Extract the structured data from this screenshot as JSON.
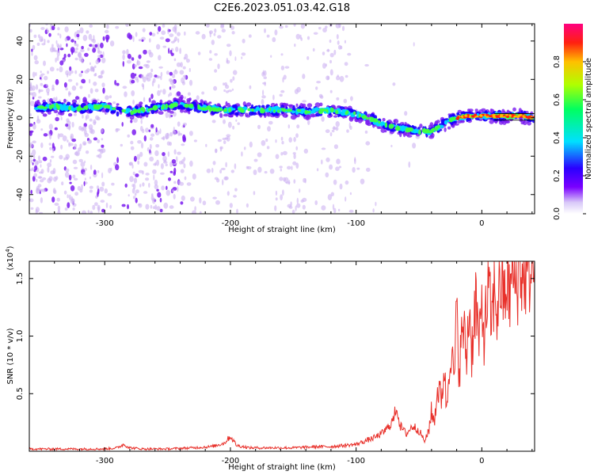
{
  "title": "C2E6.2023.051.03.42.G18",
  "colors": {
    "snr_line": "#e8302a",
    "spectro_low": "#cdb3f2",
    "spectro_mid": "#7b1cf0",
    "ridge_outline": "#1a00ff"
  },
  "chart_data": [
    {
      "type": "heatmap",
      "xlabel": "Height of straight line (km)",
      "ylabel": "Frequency (Hz)",
      "xlim": [
        -360,
        42
      ],
      "ylim": [
        -50,
        49
      ],
      "x_ticks": [
        -300,
        -200,
        -100,
        0
      ],
      "x_tick_labels": [
        "-300",
        "-200",
        "-100",
        "0"
      ],
      "y_ticks": [
        -40,
        -20,
        0,
        20,
        40
      ],
      "y_tick_labels": [
        "-40",
        "-20",
        "0",
        "20",
        "40"
      ],
      "ridge": {
        "x": [
          -355,
          -340,
          -320,
          -300,
          -290,
          -280,
          -260,
          -240,
          -220,
          -200,
          -180,
          -160,
          -140,
          -120,
          -100,
          -90,
          -80,
          -70,
          -60,
          -50,
          -40,
          -30,
          -20,
          -10,
          0,
          10,
          20,
          30,
          42
        ],
        "y": [
          5,
          6,
          5,
          6,
          4,
          3,
          5,
          7,
          5,
          4,
          4,
          4,
          3,
          4,
          2,
          0,
          -3,
          -5,
          -6,
          -7,
          -7,
          -3,
          0,
          1,
          1,
          1,
          1,
          1,
          0
        ]
      },
      "colorbar": {
        "label": "Normalized spectral amplitude",
        "range": [
          0,
          1
        ],
        "ticks": [
          0.0,
          0.2,
          0.4,
          0.6,
          0.8
        ],
        "tick_labels": [
          "0.0",
          "0.2",
          "0.4",
          "0.6",
          "0.8"
        ],
        "colormap": [
          "#ffffff",
          "#d8c8f8",
          "#7a00ff",
          "#2a00ff",
          "#00e0ff",
          "#00ff60",
          "#b0ff00",
          "#ffc000",
          "#ff2010",
          "#ff0080"
        ]
      }
    },
    {
      "type": "line",
      "xlabel": "Height of straight line (km)",
      "ylabel": "SNR (10 * v/v)",
      "multiplier_label": "(x10",
      "multiplier_exponent": "4",
      "multiplier_close": ")",
      "xlim": [
        -360,
        42
      ],
      "ylim": [
        0,
        1.65
      ],
      "x_ticks": [
        -300,
        -200,
        -100,
        0
      ],
      "x_tick_labels": [
        "-300",
        "-200",
        "-100",
        "0"
      ],
      "y_ticks": [
        0.5,
        1.0,
        1.5
      ],
      "y_tick_labels": [
        "0.5",
        "1.0",
        "1.5"
      ],
      "series": [
        {
          "color": "#e8302a",
          "x": [
            -360,
            -340,
            -320,
            -300,
            -290,
            -285,
            -280,
            -270,
            -250,
            -230,
            -215,
            -205,
            -200,
            -195,
            -185,
            -170,
            -150,
            -130,
            -120,
            -110,
            -100,
            -95,
            -90,
            -85,
            -80,
            -75,
            -70,
            -68,
            -65,
            -60,
            -55,
            -50,
            -45,
            -42,
            -40,
            -38,
            -35,
            -32,
            -30,
            -28,
            -25,
            -22,
            -20,
            -18,
            -15,
            -12,
            -10,
            -8,
            -5,
            -2,
            0,
            2,
            5,
            8,
            10,
            12,
            15,
            18,
            20,
            22,
            25,
            28,
            30,
            33,
            36,
            40,
            42
          ],
          "y": [
            0.02,
            0.02,
            0.02,
            0.02,
            0.03,
            0.06,
            0.03,
            0.02,
            0.02,
            0.03,
            0.04,
            0.07,
            0.13,
            0.05,
            0.03,
            0.03,
            0.03,
            0.04,
            0.04,
            0.05,
            0.06,
            0.08,
            0.1,
            0.12,
            0.15,
            0.2,
            0.28,
            0.4,
            0.22,
            0.15,
            0.22,
            0.18,
            0.08,
            0.2,
            0.35,
            0.25,
            0.55,
            0.45,
            0.75,
            0.35,
            0.95,
            0.6,
            1.2,
            0.7,
            1.1,
            0.8,
            1.3,
            0.85,
            1.35,
            0.9,
            1.25,
            1.0,
            1.4,
            1.1,
            1.45,
            1.2,
            1.5,
            1.3,
            1.5,
            1.35,
            1.55,
            1.45,
            1.6,
            1.5,
            1.62,
            1.58,
            1.6
          ]
        }
      ]
    }
  ]
}
